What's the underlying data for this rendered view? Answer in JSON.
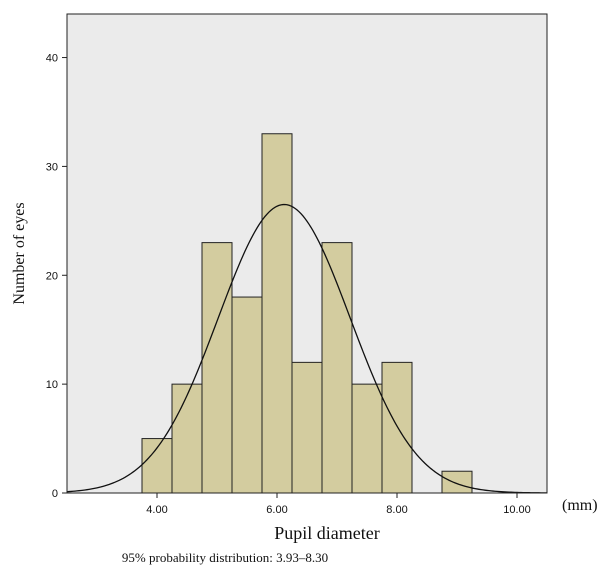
{
  "chart_data": {
    "type": "bar",
    "subtype": "histogram",
    "title": "",
    "xlabel": "Pupil diameter",
    "x_unit": "(mm)",
    "ylabel": "Number of eyes",
    "footnote": "95% probability distribution: 3.93–8.30",
    "xlim": [
      2.5,
      10.5
    ],
    "ylim": [
      0,
      44
    ],
    "x_ticks": [
      4,
      6,
      8,
      10
    ],
    "x_tick_labels": [
      "4.00",
      "6.00",
      "8.00",
      "10.00"
    ],
    "y_ticks": [
      0,
      10,
      20,
      30,
      40
    ],
    "y_tick_labels": [
      "0",
      "10",
      "20",
      "30",
      "40"
    ],
    "bin_width": 0.5,
    "bins": [
      {
        "x0": 3.75,
        "x1": 4.25,
        "count": 5
      },
      {
        "x0": 4.25,
        "x1": 4.75,
        "count": 10
      },
      {
        "x0": 4.75,
        "x1": 5.25,
        "count": 23
      },
      {
        "x0": 5.25,
        "x1": 5.75,
        "count": 18
      },
      {
        "x0": 5.75,
        "x1": 6.25,
        "count": 33
      },
      {
        "x0": 6.25,
        "x1": 6.75,
        "count": 12
      },
      {
        "x0": 6.75,
        "x1": 7.25,
        "count": 23
      },
      {
        "x0": 7.25,
        "x1": 7.75,
        "count": 10
      },
      {
        "x0": 7.75,
        "x1": 8.25,
        "count": 12
      },
      {
        "x0": 8.75,
        "x1": 9.25,
        "count": 2
      }
    ],
    "normal_curve": {
      "mean": 6.12,
      "peak": 26.5,
      "sd": 1.1
    },
    "grid": false,
    "legend": "none",
    "colors": {
      "plot_background": "#ebebeb",
      "bar_fill": "#d3cc9f",
      "bar_stroke": "#222222",
      "curve": "#111111"
    }
  }
}
